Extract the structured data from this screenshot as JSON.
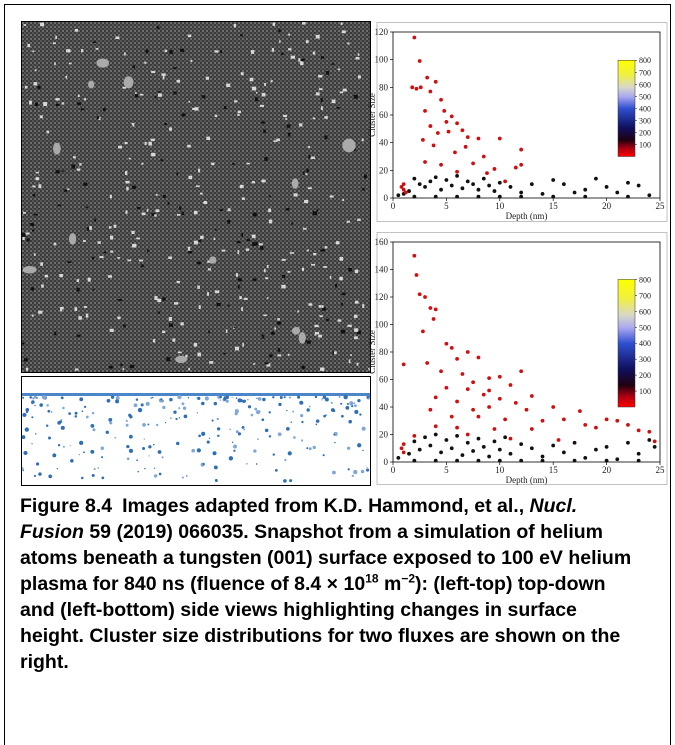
{
  "chart_data": [
    {
      "type": "scatter",
      "xlabel": "Depth (nm)",
      "ylabel": "Cluster Size",
      "xlim": [
        0,
        25
      ],
      "xticks": [
        0,
        5,
        10,
        15,
        20,
        25
      ],
      "ylim": [
        0,
        120
      ],
      "yticks": [
        0,
        20,
        40,
        60,
        80,
        100,
        120
      ],
      "colorbar": {
        "lim": [
          0,
          800
        ],
        "ticks": [
          100,
          200,
          300,
          400,
          500,
          600,
          700,
          800
        ]
      },
      "series": [
        {
          "color": "#111111",
          "x": [
            0.5,
            1,
            1.5,
            2,
            2.5,
            3,
            3.5,
            4,
            4.5,
            5,
            5.5,
            6,
            6.5,
            7,
            7.5,
            8,
            8.5,
            9,
            9.5,
            10,
            11,
            12,
            13,
            14,
            15,
            16,
            17,
            18,
            19,
            20,
            21,
            22,
            23,
            24,
            2,
            4,
            6,
            8,
            10,
            12,
            15,
            18,
            22
          ],
          "y": [
            2,
            3,
            5,
            14,
            10,
            8,
            12,
            15,
            6,
            13,
            9,
            16,
            7,
            12,
            10,
            6,
            14,
            9,
            5,
            11,
            8,
            4,
            10,
            3,
            13,
            10,
            4,
            6,
            14,
            8,
            4,
            11,
            9,
            2,
            1,
            1,
            1,
            1,
            1,
            1,
            1,
            1,
            1
          ]
        },
        {
          "color": "#d01010",
          "x": [
            2,
            2.5,
            1.8,
            2.2,
            2.6,
            3.2,
            4,
            3.5,
            4.5,
            3,
            4.8,
            5.5,
            5,
            6,
            6.5,
            3.5,
            4.2,
            5.2,
            7,
            8,
            10,
            2.8,
            3.8,
            6.8,
            5.8,
            8.5,
            12,
            3,
            4.5,
            7.5,
            9.5,
            11.5,
            6,
            8.8,
            12,
            10.5,
            1,
            0.8,
            1,
            1.2
          ],
          "y": [
            116,
            99,
            80,
            79,
            80,
            87,
            84,
            77,
            71,
            63,
            63,
            59,
            55,
            54,
            49,
            52,
            47,
            48,
            44,
            43,
            43,
            42,
            38,
            37,
            33,
            30,
            35,
            26,
            24,
            25,
            21,
            22,
            19,
            18,
            24,
            12,
            10,
            8,
            6,
            4
          ]
        }
      ]
    },
    {
      "type": "scatter",
      "xlabel": "Depth (nm)",
      "ylabel": "Cluster Size",
      "xlim": [
        0,
        25
      ],
      "xticks": [
        0,
        5,
        10,
        15,
        20,
        25
      ],
      "ylim": [
        0,
        160
      ],
      "yticks": [
        0,
        20,
        40,
        60,
        80,
        100,
        120,
        140,
        160
      ],
      "colorbar": {
        "lim": [
          0,
          800
        ],
        "ticks": [
          100,
          200,
          300,
          400,
          500,
          600,
          700,
          800
        ]
      },
      "series": [
        {
          "color": "#111111",
          "x": [
            0.5,
            1.5,
            2,
            2.5,
            3,
            3.5,
            4,
            4.5,
            5,
            5.5,
            6,
            6.5,
            7,
            7.5,
            8,
            8.5,
            9,
            9.5,
            10,
            10.5,
            11,
            12,
            13,
            14,
            15,
            16,
            17,
            18,
            19,
            20,
            21,
            22,
            23,
            24,
            24.5,
            2,
            4,
            6,
            8,
            10,
            12,
            14,
            17,
            20,
            23
          ],
          "y": [
            3,
            6,
            15,
            9,
            18,
            12,
            20,
            7,
            16,
            10,
            19,
            5,
            14,
            8,
            17,
            11,
            4,
            15,
            9,
            18,
            6,
            13,
            10,
            4,
            12,
            7,
            14,
            3,
            9,
            11,
            2,
            14,
            6,
            16,
            11,
            1,
            1,
            1,
            1,
            1,
            1,
            1,
            1,
            1,
            1
          ]
        },
        {
          "color": "#d01010",
          "x": [
            2,
            2.2,
            2.5,
            3,
            3.5,
            4,
            3.8,
            2.8,
            5,
            5.5,
            7,
            8,
            6,
            3.2,
            1,
            4.5,
            6.5,
            9,
            10,
            12,
            7.5,
            11,
            5,
            7,
            9,
            8.5,
            13,
            4,
            6,
            10,
            11.5,
            3.5,
            7.5,
            9,
            12.5,
            15,
            17.5,
            20,
            5.5,
            8,
            10.5,
            14,
            16,
            18,
            21,
            22,
            4,
            6,
            9.5,
            13,
            19,
            23,
            24,
            2,
            7,
            11,
            15.5,
            24.5,
            1,
            0.8,
            1
          ],
          "y": [
            150,
            136,
            122,
            120,
            112,
            111,
            104,
            95,
            86,
            83,
            80,
            76,
            75,
            72,
            71,
            66,
            64,
            61,
            62,
            66,
            58,
            56,
            54,
            53,
            52,
            49,
            48,
            47,
            44,
            46,
            43,
            38,
            38,
            40,
            38,
            40,
            37,
            31,
            33,
            33,
            31,
            30,
            31,
            27,
            30,
            27,
            26,
            25,
            24,
            24,
            25,
            23,
            22,
            19,
            20,
            17,
            16,
            15,
            13,
            10,
            7
          ]
        }
      ]
    }
  ],
  "caption": {
    "label": "Figure 8.4",
    "parts": [
      "Images adapted from K.D. Hammond, et al., ",
      "Nucl. Fusion",
      " 59 (2019) 066035. Snapshot from a simulation of helium atoms beneath a tungsten (001) surface exposed to 100 eV helium plasma for 840 ns (fluence of 8.4 × 10",
      "18",
      " m",
      "−2",
      "): (left-top) top-down and (left-bottom) side views highlighting changes in surface height. Cluster size distributions for two fluxes are shown on the right."
    ]
  }
}
